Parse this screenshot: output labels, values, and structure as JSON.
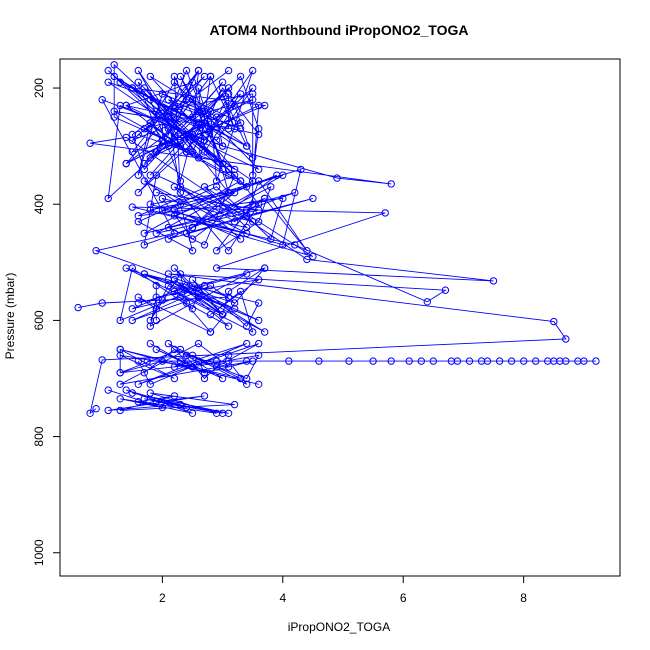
{
  "chart_data": {
    "type": "scatter",
    "title": "ATOM4 Northbound iPropONO2_TOGA",
    "xlabel": "iPropONO2_TOGA",
    "ylabel": "Pressure (mbar)",
    "xlim": [
      0.3,
      9.6
    ],
    "ylim": [
      1040,
      150
    ],
    "y_reversed": true,
    "x_ticks": [
      2,
      4,
      6,
      8
    ],
    "y_ticks": [
      200,
      400,
      600,
      800,
      1000
    ],
    "style": "points connected by lines",
    "color": "#0000ff",
    "grid": false,
    "series": [
      {
        "x": [
          3.1,
          2.2,
          1.2,
          2.9,
          3.5,
          1.6,
          2.7,
          1.4,
          3.0,
          3.4,
          2.5,
          3.0,
          1.7,
          1.5,
          2.2,
          2.6,
          1.5,
          3.3,
          2.5,
          3.1,
          2.3,
          2.8,
          3.5,
          3.1,
          1.1,
          1.3,
          2.7,
          3.5,
          2.9,
          2.8,
          2.4,
          1.5,
          2.4,
          3.2,
          1.8,
          2.9,
          3.0,
          2.1,
          3.3,
          1.1,
          3.5,
          3.6,
          1.8,
          3.3,
          2.7,
          2.2,
          2.3,
          2.1,
          1.7,
          3.0,
          1.1,
          2.1,
          2.4,
          1.4,
          2.5,
          2.1,
          1.8,
          1.6,
          2.0,
          2.7,
          1.5,
          2.7,
          1.4,
          3.5,
          1.7,
          3.4,
          1.2,
          1.2,
          2.5,
          3.0,
          3.6,
          1.4,
          3.6,
          2.2,
          1.8,
          2.3,
          1.6,
          2.6,
          1.9,
          3.5,
          3.5,
          3.6,
          3.3,
          2.3,
          3.2,
          2.7,
          2.6,
          3.1,
          2.1,
          2.4,
          3.0,
          1.6,
          2.4,
          2.0,
          1.6,
          3.3,
          1.2,
          3.1,
          3.1,
          2.6,
          2.8,
          2.0,
          2.0,
          3.1,
          1.5,
          3.7,
          1.9,
          2.6,
          2.5,
          2.3,
          1.8,
          2.6,
          1.3,
          3.4,
          2.6,
          1.7,
          2.8,
          3.2,
          3.0,
          1.8
        ],
        "y": [
          170,
          240,
          180,
          290,
          200,
          380,
          260,
          330,
          210,
          300,
          250,
          190,
          340,
          280,
          230,
          170,
          310,
          260,
          220,
          350,
          180,
          270,
          320,
          200,
          390,
          230,
          290,
          170,
          360,
          240,
          310,
          200,
          280,
          340,
          180,
          250,
          300,
          220,
          270,
          190,
          360,
          230,
          320,
          210,
          290,
          180,
          380,
          250,
          200,
          340,
          170,
          270,
          310,
          230,
          190,
          300,
          260,
          350,
          210,
          240,
          290,
          180,
          330,
          220,
          270,
          370,
          160,
          250,
          310,
          200,
          280,
          230,
          340,
          190,
          260,
          300,
          170,
          320,
          240,
          210,
          350,
          270,
          180,
          290,
          230,
          310,
          200,
          380,
          250,
          170,
          330,
          280,
          220,
          300,
          190,
          360,
          240,
          270,
          210,
          320,
          180,
          290,
          250,
          340,
          200,
          230,
          310,
          170,
          280,
          360,
          220,
          260,
          190,
          300,
          240,
          330,
          180,
          270,
          210,
          350
        ]
      },
      {
        "x": [
          3.7,
          2.5,
          4.0,
          2.2,
          3.3,
          2.3,
          3.2,
          3.7,
          4.4,
          3.6,
          3.4,
          2.4,
          3.1,
          1.8,
          4.0,
          4.3,
          2.0,
          3.4,
          2.7,
          4.5,
          2.2,
          3.9,
          2.5,
          2.0,
          3.5,
          2.2,
          3.1,
          3.6,
          3.3,
          1.7,
          3.4,
          4.2,
          2.1,
          2.7,
          3.2,
          1.6,
          4.0,
          3.8,
          2.9,
          1.6,
          2.5,
          2.3,
          1.7,
          3.4,
          1.8,
          3.2,
          2.5,
          1.7,
          1.9,
          3.4,
          4.5,
          2.1,
          3.8,
          3.6,
          2.9,
          3.5,
          3.5,
          1.9,
          3.6,
          1.9
        ],
        "y": [
          390,
          440,
          350,
          410,
          460,
          370,
          430,
          390,
          480,
          360,
          420,
          450,
          380,
          400,
          470,
          340,
          410,
          440,
          370,
          490,
          420,
          350,
          460,
          390,
          430,
          370,
          480,
          400,
          360,
          450,
          410,
          380,
          440,
          470,
          350,
          420,
          390,
          460,
          370,
          430,
          480,
          400,
          360,
          450,
          410,
          380,
          440,
          470,
          350,
          420,
          390,
          460,
          370,
          430,
          480,
          400,
          360,
          450,
          410,
          380
        ]
      },
      {
        "x": [
          1.7,
          3.2,
          2.8,
          1.5,
          2.6,
          2.2,
          3.0,
          2.1,
          3.7,
          2.6,
          2.5,
          1.5,
          1.3,
          2.7,
          1.6,
          3.4,
          1.8,
          1.9,
          3.6,
          2.8,
          3.3,
          3.5,
          1.4,
          3.2,
          2.1,
          1.8,
          2.3,
          2.4,
          3.1,
          2.2,
          3.0,
          3.1,
          3.7,
          2.8,
          2.3,
          1.5,
          2.4,
          3.6,
          1.7,
          3.6,
          3.4,
          2.5,
          3.0,
          2.2,
          3.7,
          2.8,
          1.6,
          1.9,
          1.9,
          1.9
        ],
        "y": [
          520,
          570,
          540,
          600,
          560,
          510,
          590,
          530,
          620,
          550,
          580,
          510,
          600,
          540,
          570,
          520,
          610,
          560,
          530,
          590,
          550,
          620,
          510,
          580,
          540,
          600,
          520,
          570,
          610,
          530,
          590,
          550,
          510,
          620,
          560,
          580,
          540,
          600,
          520,
          570,
          610,
          530,
          590,
          550,
          510,
          620,
          560,
          580,
          540,
          600
        ]
      },
      {
        "x": [
          1.8,
          2.5,
          1.3,
          2.2,
          1.3,
          2.7,
          3.5,
          1.3,
          2.6,
          3.1,
          2.4,
          3.0,
          1.9,
          2.7,
          2.6,
          1.6,
          3.6,
          2.9,
          3.1,
          2.7,
          2.3,
          1.3,
          3.1,
          3.4,
          2.1,
          2.5,
          3.6,
          3.4,
          2.2,
          1.7,
          1.6,
          1.8,
          3.4,
          2.2,
          2.5,
          3.3,
          1.3,
          1.3,
          2.0,
          3.6
        ],
        "y": [
          640,
          680,
          660,
          700,
          650,
          690,
          670,
          710,
          640,
          680,
          660,
          700,
          650,
          690,
          670,
          710,
          640,
          680,
          660,
          700,
          650,
          690,
          670,
          710,
          640,
          680,
          660,
          700,
          650,
          690,
          670,
          710,
          640,
          680,
          660,
          700,
          650,
          690,
          670,
          710
        ]
      },
      {
        "x": [
          1.1,
          2.0,
          1.3,
          2.9,
          1.8,
          3.2,
          1.3,
          2.2,
          1.6,
          2.5,
          1.4,
          2.4,
          1.7,
          3.1,
          1.5,
          2.3,
          1.1,
          2.7,
          1.9,
          3.0
        ],
        "y": [
          720,
          750,
          735,
          760,
          725,
          745,
          755,
          730,
          740,
          760,
          720,
          750,
          735,
          760,
          725,
          745,
          755,
          730,
          740,
          760
        ]
      },
      {
        "x": [
          1.75,
          2.3,
          2.9,
          3.4,
          4.1,
          4.6,
          5.1,
          5.5,
          5.8,
          6.1,
          6.3,
          6.5,
          6.8,
          6.9,
          7.1,
          7.3,
          7.4,
          7.6,
          7.8,
          8.0,
          8.2,
          8.4,
          8.5,
          8.6,
          8.7,
          8.9,
          9.0,
          9.2
        ],
        "y": [
          670,
          670,
          670,
          670,
          670,
          670,
          670,
          670,
          670,
          670,
          670,
          670,
          670,
          670,
          670,
          670,
          670,
          670,
          670,
          670,
          670,
          670,
          670,
          670,
          670,
          670,
          670,
          670
        ]
      },
      {
        "x": [
          0.6,
          1.0,
          2.0,
          3.1,
          0.9,
          2.2,
          1.0,
          3.0,
          4.9,
          5.8,
          0.8,
          1.4,
          4.4,
          7.5,
          2.9,
          5.7,
          1.5,
          4.2,
          6.4,
          6.7,
          2.1,
          8.5,
          8.7,
          1.0,
          0.8,
          0.9
        ],
        "y": [
          578,
          570,
          565,
          560,
          480,
          450,
          220,
          300,
          355,
          365,
          295,
          285,
          495,
          532,
          510,
          415,
          405,
          470,
          568,
          548,
          520,
          602,
          632,
          668,
          760,
          752
        ]
      }
    ]
  }
}
